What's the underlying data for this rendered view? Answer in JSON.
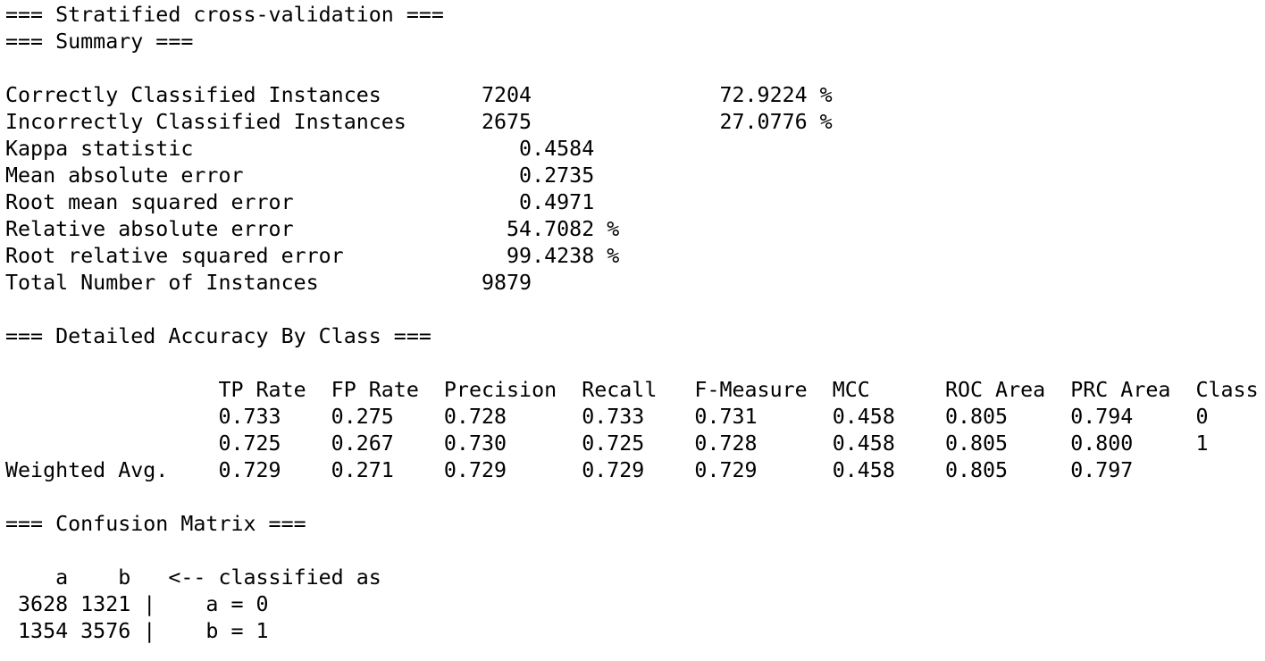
{
  "colors": {
    "background": "#ffffff",
    "text": "#000000"
  },
  "lines": [
    "=== Stratified cross-validation ===",
    "=== Summary ===",
    "",
    "Correctly Classified Instances        7204               72.9224 %",
    "Incorrectly Classified Instances      2675               27.0776 %",
    "Kappa statistic                          0.4584",
    "Mean absolute error                      0.2735",
    "Root mean squared error                  0.4971",
    "Relative absolute error                 54.7082 %",
    "Root relative squared error             99.4238 %",
    "Total Number of Instances             9879",
    "",
    "=== Detailed Accuracy By Class ===",
    "",
    "                 TP Rate  FP Rate  Precision  Recall   F-Measure  MCC      ROC Area  PRC Area  Class",
    "                 0.733    0.275    0.728      0.733    0.731      0.458    0.805     0.794     0",
    "                 0.725    0.267    0.730      0.725    0.728      0.458    0.805     0.800     1",
    "Weighted Avg.    0.729    0.271    0.729      0.729    0.729      0.458    0.805     0.797",
    "",
    "=== Confusion Matrix ===",
    "",
    "    a    b   <-- classified as",
    " 3628 1321 |    a = 0",
    " 1354 3576 |    b = 1"
  ]
}
